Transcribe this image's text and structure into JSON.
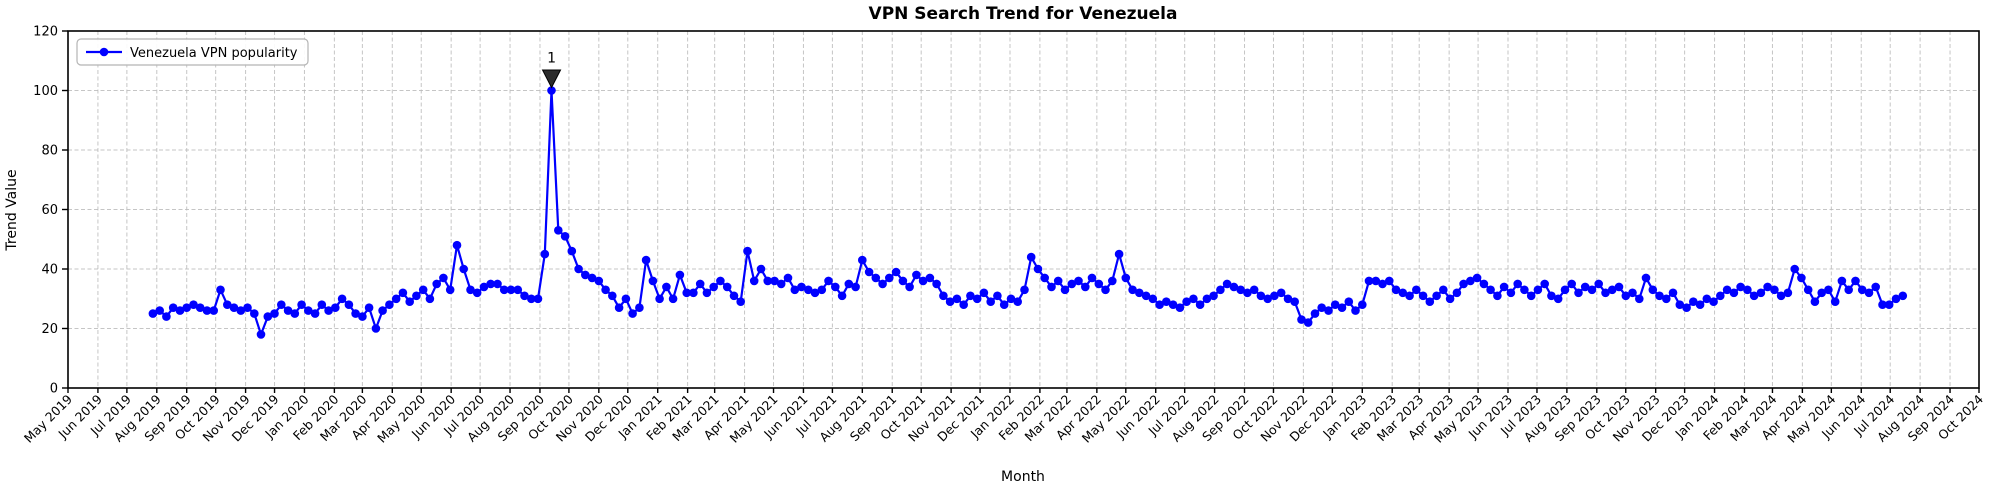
{
  "title": "VPN Search Trend for Venezuela",
  "axis": {
    "xlabel": "Month",
    "ylabel": "Trend Value"
  },
  "legend": {
    "entries": [
      {
        "label": "Venezuela VPN popularity",
        "color": "#0000ff",
        "marker": "circle-marker-icon"
      }
    ],
    "position": "upper left"
  },
  "chart_data": {
    "type": "line",
    "title": "VPN Search Trend for Venezuela",
    "xlabel": "Month",
    "ylabel": "Trend Value",
    "ylim": [
      0,
      120
    ],
    "yticks": [
      0,
      20,
      40,
      60,
      80,
      100,
      120
    ],
    "grid": true,
    "grid_style": "dashed",
    "x_axis_range": [
      "2019-05-01",
      "2024-10-01"
    ],
    "x_tick_labels": [
      "May 2019",
      "Jun 2019",
      "Jul 2019",
      "Aug 2019",
      "Sep 2019",
      "Oct 2019",
      "Nov 2019",
      "Dec 2019",
      "Jan 2020",
      "Feb 2020",
      "Mar 2020",
      "Apr 2020",
      "May 2020",
      "Jun 2020",
      "Jul 2020",
      "Aug 2020",
      "Sep 2020",
      "Oct 2020",
      "Nov 2020",
      "Dec 2020",
      "Jan 2021",
      "Feb 2021",
      "Mar 2021",
      "Apr 2021",
      "May 2021",
      "Jun 2021",
      "Jul 2021",
      "Aug 2021",
      "Sep 2021",
      "Oct 2021",
      "Nov 2021",
      "Dec 2021",
      "Jan 2022",
      "Feb 2022",
      "Mar 2022",
      "Apr 2022",
      "May 2022",
      "Jun 2022",
      "Jul 2022",
      "Aug 2022",
      "Sep 2022",
      "Oct 2022",
      "Nov 2022",
      "Dec 2022",
      "Jan 2023",
      "Feb 2023",
      "Mar 2023",
      "Apr 2023",
      "May 2023",
      "Jun 2023",
      "Jul 2023",
      "Aug 2023",
      "Sep 2023",
      "Oct 2023",
      "Nov 2023",
      "Dec 2023",
      "Jan 2024",
      "Feb 2024",
      "Mar 2024",
      "Apr 2024",
      "May 2024",
      "Jun 2024",
      "Jul 2024",
      "Aug 2024",
      "Sep 2024",
      "Oct 2024"
    ],
    "series": [
      {
        "name": "Venezuela VPN popularity",
        "color": "#0000ff",
        "start_date": "2019-07-28",
        "interval_days": 7,
        "values": [
          25,
          26,
          24,
          27,
          26,
          27,
          28,
          27,
          26,
          26,
          33,
          28,
          27,
          26,
          27,
          25,
          18,
          24,
          25,
          28,
          26,
          25,
          28,
          26,
          25,
          28,
          26,
          27,
          30,
          28,
          25,
          24,
          27,
          20,
          26,
          28,
          30,
          32,
          29,
          31,
          33,
          30,
          35,
          37,
          33,
          48,
          40,
          33,
          32,
          34,
          35,
          35,
          33,
          33,
          33,
          31,
          30,
          30,
          45,
          100,
          53,
          51,
          46,
          40,
          38,
          37,
          36,
          33,
          31,
          27,
          30,
          25,
          27,
          43,
          36,
          30,
          34,
          30,
          38,
          32,
          32,
          35,
          32,
          34,
          36,
          34,
          31,
          29,
          46,
          36,
          40,
          36,
          36,
          35,
          37,
          33,
          34,
          33,
          32,
          33,
          36,
          34,
          31,
          35,
          34,
          43,
          39,
          37,
          35,
          37,
          39,
          36,
          34,
          38,
          36,
          37,
          35,
          31,
          29,
          30,
          28,
          31,
          30,
          32,
          29,
          31,
          28,
          30,
          29,
          33,
          44,
          40,
          37,
          34,
          36,
          33,
          35,
          36,
          34,
          37,
          35,
          33,
          36,
          45,
          37,
          33,
          32,
          31,
          30,
          28,
          29,
          28,
          27,
          29,
          30,
          28,
          30,
          31,
          33,
          35,
          34,
          33,
          32,
          33,
          31,
          30,
          31,
          32,
          30,
          29,
          23,
          22,
          25,
          27,
          26,
          28,
          27,
          29,
          26,
          28,
          36,
          36,
          35,
          36,
          33,
          32,
          31,
          33,
          31,
          29,
          31,
          33,
          30,
          32,
          35,
          36,
          37,
          35,
          33,
          31,
          34,
          32,
          35,
          33,
          31,
          33,
          35,
          31,
          30,
          33,
          35,
          32,
          34,
          33,
          35,
          32,
          33,
          34,
          31,
          32,
          30,
          37,
          33,
          31,
          30,
          32,
          28,
          27,
          29,
          28,
          30,
          29,
          31,
          33,
          32,
          34,
          33,
          31,
          32,
          34,
          33,
          31,
          32,
          40,
          37,
          33,
          29,
          32,
          33,
          29,
          36,
          33,
          36,
          33,
          32,
          34,
          28,
          28,
          30,
          31
        ]
      }
    ],
    "annotations": [
      {
        "label": "1",
        "series": "Venezuela VPN popularity",
        "point_index": 59,
        "value": 100,
        "arrow": "black-wedge-down"
      }
    ]
  },
  "colors": {
    "line": "#0000ff",
    "grid": "#bbbbbb",
    "spine": "#000000",
    "annotation_arrow": "#2b2b2b",
    "legend_border": "#b5b5b5",
    "background": "#ffffff"
  }
}
